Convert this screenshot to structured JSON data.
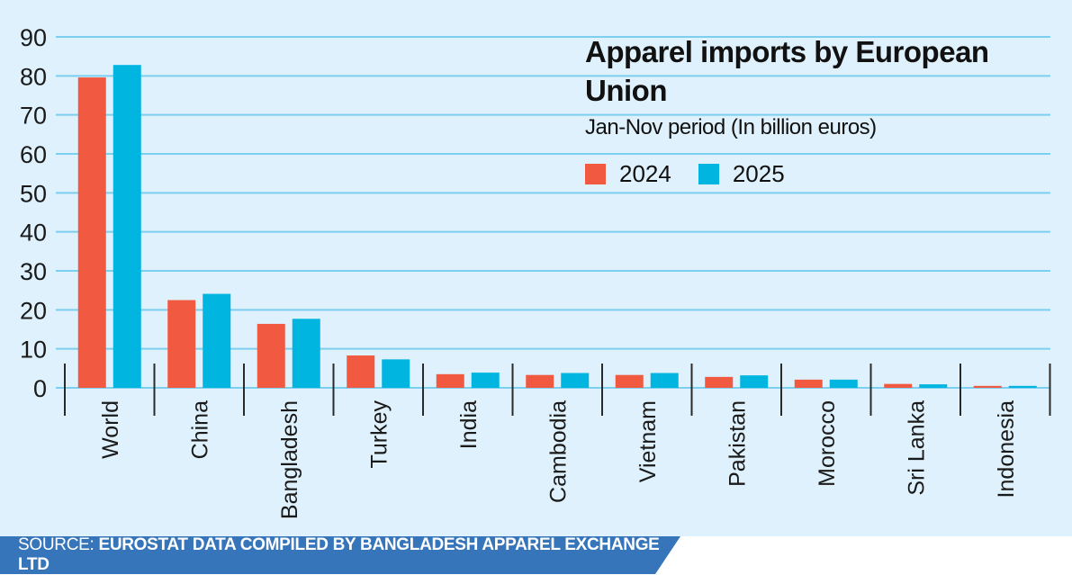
{
  "chart_data": {
    "type": "bar",
    "title": "Apparel imports by European Union",
    "subtitle": "Jan-Nov period (In billion euros)",
    "xlabel": "",
    "ylabel": "",
    "ylim": [
      0,
      90
    ],
    "yticks": [
      0,
      10,
      20,
      30,
      40,
      50,
      60,
      70,
      80,
      90
    ],
    "grid": true,
    "legend_position": "top-right",
    "categories": [
      "World",
      "China",
      "Bangladesh",
      "Turkey",
      "India",
      "Cambodia",
      "Vietnam",
      "Pakistan",
      "Morocco",
      "Sri Lanka",
      "Indonesia"
    ],
    "series": [
      {
        "name": "2024",
        "color": "#f15a40",
        "values": [
          79.6,
          22.5,
          16.4,
          8.3,
          3.5,
          3.3,
          3.3,
          2.8,
          2.1,
          1.0,
          0.5
        ]
      },
      {
        "name": "2025",
        "color": "#00b5e0",
        "values": [
          82.8,
          24.1,
          17.7,
          7.3,
          3.9,
          3.8,
          3.8,
          3.2,
          2.1,
          0.9,
          0.5
        ]
      }
    ]
  },
  "legend": {
    "items": [
      {
        "label": "2024",
        "color": "#f15a40"
      },
      {
        "label": "2025",
        "color": "#00b5e0"
      }
    ]
  },
  "source": {
    "label": "SOURCE:",
    "text": "EUROSTAT DATA COMPILED BY BANGLADESH APPAREL EXCHANGE LTD"
  },
  "colors": {
    "background": "#dff1fc",
    "grid": "#7ccfee",
    "source_bar": "#3775bb"
  }
}
